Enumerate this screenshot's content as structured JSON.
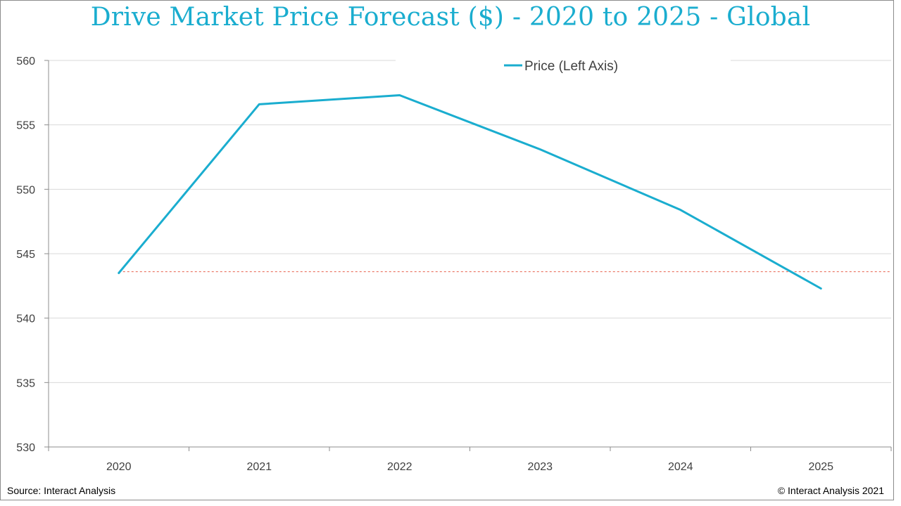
{
  "chart_data": {
    "type": "line",
    "title": "Drive Market Price Forecast ($) - 2020 to 2025 - Global",
    "xlabel": "",
    "ylabel": "",
    "categories": [
      "2020",
      "2021",
      "2022",
      "2023",
      "2024",
      "2025"
    ],
    "series": [
      {
        "name": "Price (Left Axis)",
        "values": [
          543.5,
          556.6,
          557.3,
          553.1,
          548.4,
          542.3
        ],
        "color": "#1aadcf"
      }
    ],
    "reference_line": {
      "value": 543.6,
      "color": "#e8604c",
      "style": "dashed"
    },
    "ylim": [
      530,
      560
    ],
    "yticks": [
      530,
      535,
      540,
      545,
      550,
      555,
      560
    ],
    "grid": true,
    "legend_position": "top-center"
  },
  "footer": {
    "source": "Source: Interact Analysis",
    "copyright": "© Interact Analysis 2021"
  },
  "colors": {
    "title": "#1aadcf",
    "gridline": "#d9d9d9",
    "axis": "#8c8c8c"
  }
}
